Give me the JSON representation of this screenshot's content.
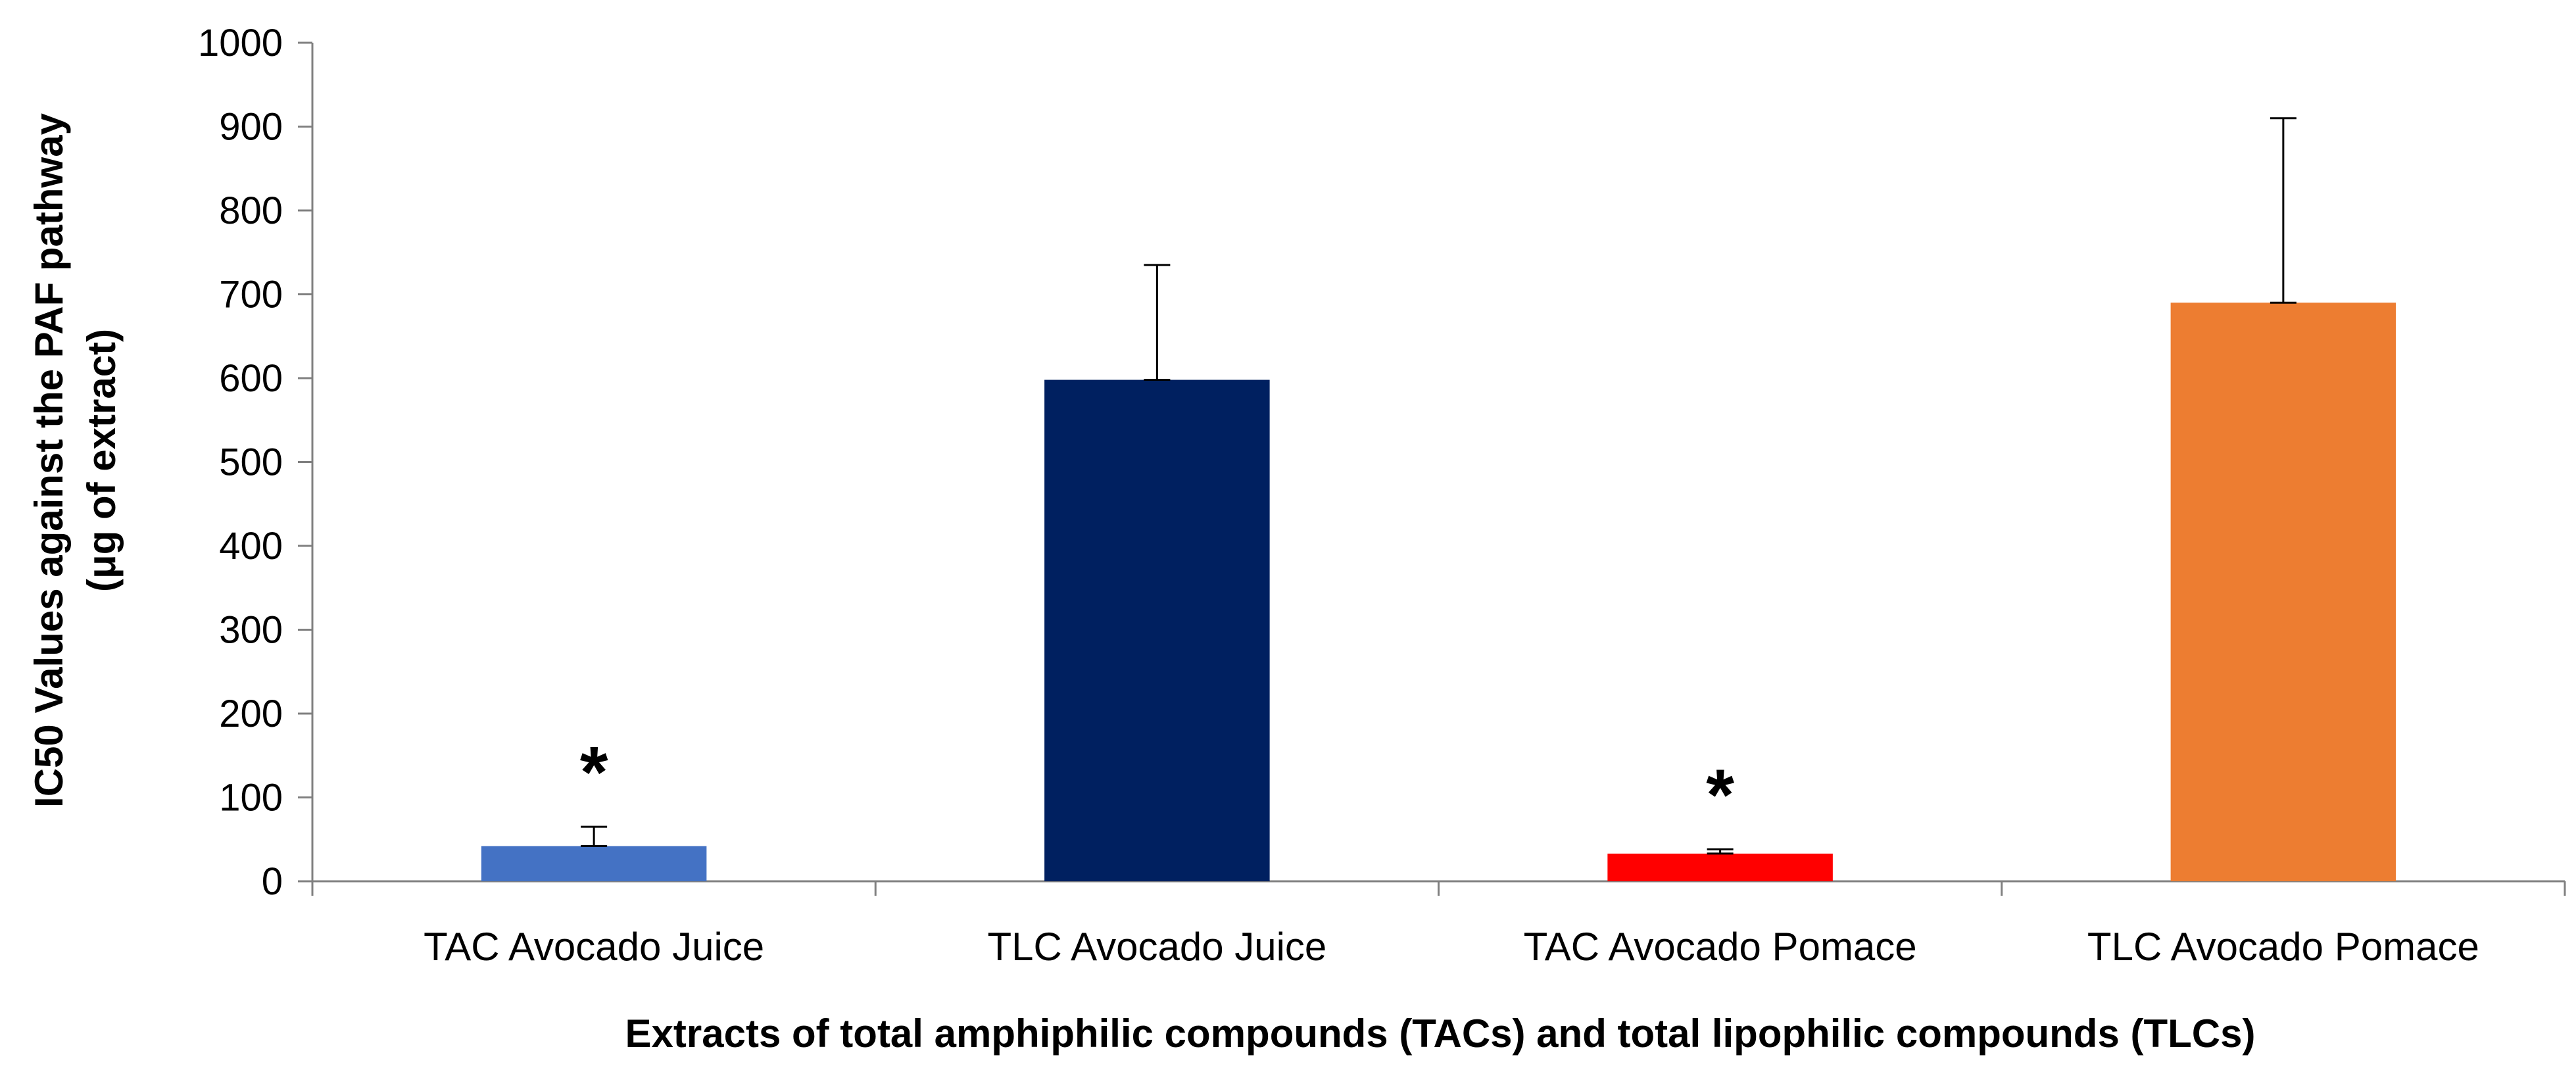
{
  "chart_data": {
    "type": "bar",
    "title": "",
    "categories": [
      "TAC Avocado Juice",
      "TLC Avocado Juice",
      "TAC Avocado Pomace",
      "TLC Avocado Pomace"
    ],
    "values": [
      42,
      598,
      33,
      690
    ],
    "error_upper": [
      23,
      137,
      5,
      220
    ],
    "colors": [
      "#4472C4",
      "#002060",
      "#FF0000",
      "#ED7D31"
    ],
    "significance": [
      "*",
      "",
      "*",
      ""
    ],
    "ylabel_line1": "IC50 Values against the PAF pathway",
    "ylabel_line2": "(μg of extract)",
    "xlabel": "Extracts of total amphiphilic compounds (TACs) and total lipophilic compounds (TLCs)",
    "ylim": [
      0,
      1000
    ],
    "yticks": [
      0,
      100,
      200,
      300,
      400,
      500,
      600,
      700,
      800,
      900,
      1000
    ],
    "grid": false,
    "legend": "none"
  }
}
